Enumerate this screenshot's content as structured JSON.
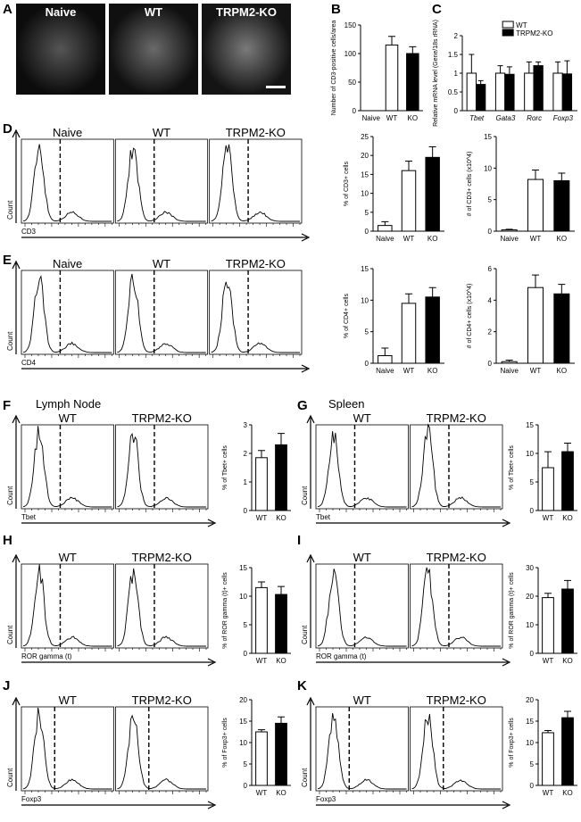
{
  "panel_letters": [
    "A",
    "B",
    "C",
    "D",
    "E",
    "F",
    "G",
    "H",
    "I",
    "J",
    "K"
  ],
  "section_titles": {
    "lymph_node": "Lymph Node",
    "spleen": "Spleen"
  },
  "micrographs": [
    {
      "title": "Naive",
      "tone": "#1e1e1e"
    },
    {
      "title": "WT",
      "tone": "#2c2c2c"
    },
    {
      "title": "TRPM2-KO",
      "tone": "#3a3a3a"
    }
  ],
  "histograms": {
    "D": {
      "titles": [
        "Naive",
        "WT",
        "TRPM2-KO"
      ],
      "axis_label": "CD3",
      "ylabel": "Count"
    },
    "E": {
      "titles": [
        "Naive",
        "WT",
        "TRPM2-KO"
      ],
      "axis_label": "CD4",
      "ylabel": "Count"
    },
    "F": {
      "titles": [
        "WT",
        "TRPM2-KO"
      ],
      "axis_label": "Tbet",
      "ylabel": "Count"
    },
    "G": {
      "titles": [
        "WT",
        "TRPM2-KO"
      ],
      "axis_label": "Tbet",
      "ylabel": "Count"
    },
    "H": {
      "titles": [
        "WT",
        "TRPM2-KO"
      ],
      "axis_label": "ROR gamma (t)",
      "ylabel": "Count"
    },
    "I": {
      "titles": [
        "WT",
        "TRPM2-KO"
      ],
      "axis_label": "ROR gamma (t)",
      "ylabel": "Count"
    },
    "J": {
      "titles": [
        "WT",
        "TRPM2-KO"
      ],
      "axis_label": "Foxp3",
      "ylabel": "Count"
    },
    "K": {
      "titles": [
        "WT",
        "TRPM2-KO"
      ],
      "axis_label": "Foxp3",
      "ylabel": "Count"
    }
  },
  "colors": {
    "wt": "#ffffff",
    "ko": "#000000",
    "naive": "#ffffff"
  },
  "chart_data": [
    {
      "id": "B",
      "type": "bar",
      "categories": [
        "Naive",
        "WT",
        "KO"
      ],
      "values": [
        0,
        115,
        100
      ],
      "errors": [
        0,
        15,
        12
      ],
      "ylim": [
        0,
        150
      ],
      "yticks": [
        0,
        50,
        100,
        150
      ],
      "ylabel": "Number of CD3-positive cells/area",
      "fills": [
        "#ffffff",
        "#ffffff",
        "#000000"
      ]
    },
    {
      "id": "C",
      "type": "bar",
      "categories": [
        "Tbet",
        "Gata3",
        "Rorc",
        "Foxp3"
      ],
      "series": [
        {
          "name": "WT",
          "values": [
            1.0,
            1.0,
            1.0,
            1.0
          ],
          "errors": [
            0.5,
            0.2,
            0.3,
            0.3
          ]
        },
        {
          "name": "TRPM2-KO",
          "values": [
            0.7,
            0.97,
            1.2,
            0.98
          ],
          "errors": [
            0.1,
            0.2,
            0.1,
            0.35
          ]
        }
      ],
      "ylim": [
        0,
        2.0
      ],
      "yticks": [
        0,
        0.5,
        1.0,
        1.5,
        2.0
      ],
      "ylabel": "Relative mRNA level (Gene/18s rRNA)",
      "legend": "top-right"
    },
    {
      "id": "D1",
      "type": "bar",
      "categories": [
        "Naive",
        "WT",
        "KO"
      ],
      "values": [
        1.5,
        16,
        19.5
      ],
      "errors": [
        1,
        2.5,
        2.8
      ],
      "ylim": [
        0,
        25
      ],
      "yticks": [
        0,
        5,
        10,
        15,
        20,
        25
      ],
      "ylabel": "% of CD3+ cells",
      "fills": [
        "#ffffff",
        "#ffffff",
        "#000000"
      ]
    },
    {
      "id": "D2",
      "type": "bar",
      "categories": [
        "Naive",
        "WT",
        "KO"
      ],
      "values": [
        0.2,
        8.2,
        8.0
      ],
      "errors": [
        0.1,
        1.5,
        1.2
      ],
      "ylim": [
        0,
        15
      ],
      "yticks": [
        0,
        5,
        10,
        15
      ],
      "ylabel": "# of CD3+ cells (x10^4)",
      "fills": [
        "#ffffff",
        "#ffffff",
        "#000000"
      ]
    },
    {
      "id": "E1",
      "type": "bar",
      "categories": [
        "Naive",
        "WT",
        "KO"
      ],
      "values": [
        1.2,
        9.5,
        10.5
      ],
      "errors": [
        1.2,
        1.5,
        1.5
      ],
      "ylim": [
        0,
        15
      ],
      "yticks": [
        0,
        5,
        10,
        15
      ],
      "ylabel": "% of CD4+ cells",
      "fills": [
        "#ffffff",
        "#ffffff",
        "#000000"
      ]
    },
    {
      "id": "E2",
      "type": "bar",
      "categories": [
        "Naive",
        "WT",
        "KO"
      ],
      "values": [
        0.1,
        4.8,
        4.4
      ],
      "errors": [
        0.1,
        0.8,
        0.6
      ],
      "ylim": [
        0,
        6
      ],
      "yticks": [
        0,
        2,
        4,
        6
      ],
      "ylabel": "# of CD4+ cells (x10^4)",
      "fills": [
        "#ffffff",
        "#ffffff",
        "#000000"
      ]
    },
    {
      "id": "F",
      "type": "bar",
      "categories": [
        "WT",
        "KO"
      ],
      "values": [
        1.85,
        2.3
      ],
      "errors": [
        0.25,
        0.4
      ],
      "ylim": [
        0,
        3
      ],
      "yticks": [
        0,
        1,
        2,
        3
      ],
      "ylabel": "% of Tbet+ cells",
      "fills": [
        "#ffffff",
        "#000000"
      ]
    },
    {
      "id": "G",
      "type": "bar",
      "categories": [
        "WT",
        "KO"
      ],
      "values": [
        7.5,
        10.3
      ],
      "errors": [
        2.8,
        1.5
      ],
      "ylim": [
        0,
        15
      ],
      "yticks": [
        0,
        5,
        10,
        15
      ],
      "ylabel": "% of Tbet+ cells",
      "fills": [
        "#ffffff",
        "#000000"
      ]
    },
    {
      "id": "H",
      "type": "bar",
      "categories": [
        "WT",
        "KO"
      ],
      "values": [
        11.5,
        10.3
      ],
      "errors": [
        1.0,
        1.4
      ],
      "ylim": [
        0,
        15
      ],
      "yticks": [
        0,
        5,
        10,
        15
      ],
      "ylabel": "% of ROR gamma (t)+ cells",
      "fills": [
        "#ffffff",
        "#000000"
      ]
    },
    {
      "id": "I",
      "type": "bar",
      "categories": [
        "WT",
        "KO"
      ],
      "values": [
        19.5,
        22.5
      ],
      "errors": [
        1.5,
        3.0
      ],
      "ylim": [
        0,
        30
      ],
      "yticks": [
        0,
        10,
        20,
        30
      ],
      "ylabel": "% of ROR gamma (t)+ cells",
      "fills": [
        "#ffffff",
        "#000000"
      ]
    },
    {
      "id": "J",
      "type": "bar",
      "categories": [
        "WT",
        "KO"
      ],
      "values": [
        12.5,
        14.5
      ],
      "errors": [
        0.5,
        1.5
      ],
      "ylim": [
        0,
        20
      ],
      "yticks": [
        0,
        5,
        10,
        15,
        20
      ],
      "ylabel": "% of Foxp3+ cells",
      "fills": [
        "#ffffff",
        "#000000"
      ]
    },
    {
      "id": "K",
      "type": "bar",
      "categories": [
        "WT",
        "KO"
      ],
      "values": [
        12.3,
        15.8
      ],
      "errors": [
        0.5,
        1.5
      ],
      "ylim": [
        0,
        20
      ],
      "yticks": [
        0,
        5,
        10,
        15,
        20
      ],
      "ylabel": "% of Foxp3+ cells",
      "fills": [
        "#ffffff",
        "#000000"
      ]
    }
  ]
}
